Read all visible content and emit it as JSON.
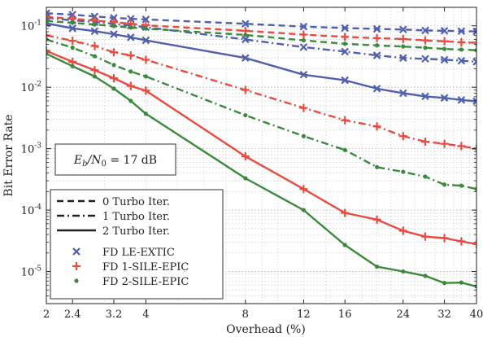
{
  "chart_data": {
    "type": "line",
    "xlabel": "Overhead (%)",
    "ylabel": "Bit Error Rate",
    "xscale": "log",
    "yscale": "log",
    "xlim": [
      2,
      40
    ],
    "ylim": [
      3e-06,
      0.2
    ],
    "xticks": [
      2,
      2.4,
      3.2,
      4,
      8,
      12,
      16,
      24,
      32,
      40
    ],
    "xtick_labels": [
      "2",
      "2.4",
      "3.2",
      "4",
      "8",
      "12",
      "16",
      "24",
      "32",
      "40"
    ],
    "yticks": [
      0.1,
      0.01,
      0.001,
      0.0001,
      1e-05
    ],
    "ytick_labels": [
      [
        "10",
        "-1"
      ],
      [
        "10",
        "-2"
      ],
      [
        "10",
        "-3"
      ],
      [
        "10",
        "-4"
      ],
      [
        "10",
        "-5"
      ]
    ],
    "grid": true,
    "annotation": {
      "text": "Eb/N0 = 17 dB",
      "lhs_main": "E",
      "lhs_sub": "b",
      "slash": "/",
      "n_main": "N",
      "n_sub": "0",
      "rhs": " = 17 dB"
    },
    "legend": {
      "placement": "bottom-left",
      "line_styles": [
        {
          "label": "0 Turbo Iter.",
          "style": "dashed"
        },
        {
          "label": "1 Turbo Iter.",
          "style": "dashdot"
        },
        {
          "label": "2 Turbo Iter.",
          "style": "solid"
        }
      ],
      "methods": [
        {
          "label": "FD LE-EXTIC",
          "color": "#5060ae",
          "marker": "x"
        },
        {
          "label": "FD 1-SILE-EPIC",
          "color": "#ea4a3f",
          "marker": "plus"
        },
        {
          "label": "FD 2-SILE-EPIC",
          "color": "#3b8a3b",
          "marker": "dot"
        }
      ]
    },
    "x": [
      2,
      2.4,
      2.8,
      3.2,
      3.6,
      4,
      8,
      12,
      16,
      20,
      24,
      28,
      32,
      36,
      40
    ],
    "series": [
      {
        "method": "FD LE-EXTIC",
        "iter": 0,
        "style": "dashed",
        "color": "#5060ae",
        "values": [
          0.16,
          0.152,
          0.142,
          0.135,
          0.13,
          0.127,
          0.108,
          0.097,
          0.092,
          0.089,
          0.087,
          0.084,
          0.083,
          0.082,
          0.081
        ]
      },
      {
        "method": "FD LE-EXTIC",
        "iter": 1,
        "style": "dashdot",
        "color": "#5060ae",
        "values": [
          0.135,
          0.123,
          0.115,
          0.108,
          0.101,
          0.095,
          0.06,
          0.045,
          0.038,
          0.033,
          0.03,
          0.029,
          0.028,
          0.027,
          0.026
        ]
      },
      {
        "method": "FD LE-EXTIC",
        "iter": 2,
        "style": "solid",
        "color": "#5060ae",
        "values": [
          0.11,
          0.091,
          0.082,
          0.073,
          0.065,
          0.058,
          0.03,
          0.016,
          0.013,
          0.0095,
          0.008,
          0.0071,
          0.0067,
          0.0062,
          0.0059
        ]
      },
      {
        "method": "FD 1-SILE-EPIC",
        "iter": 0,
        "style": "dashed",
        "color": "#ea4a3f",
        "values": [
          0.14,
          0.13,
          0.122,
          0.115,
          0.108,
          0.102,
          0.083,
          0.072,
          0.066,
          0.063,
          0.061,
          0.058,
          0.056,
          0.054,
          0.053
        ]
      },
      {
        "method": "FD 1-SILE-EPIC",
        "iter": 1,
        "style": "dashdot",
        "color": "#ea4a3f",
        "values": [
          0.07,
          0.057,
          0.047,
          0.037,
          0.033,
          0.028,
          0.009,
          0.0046,
          0.0029,
          0.0023,
          0.0016,
          0.0013,
          0.0012,
          0.0011,
          0.001
        ]
      },
      {
        "method": "FD 1-SILE-EPIC",
        "iter": 2,
        "style": "solid",
        "color": "#ea4a3f",
        "values": [
          0.039,
          0.026,
          0.019,
          0.014,
          0.0105,
          0.0088,
          0.00075,
          0.00022,
          9e-05,
          7e-05,
          4.6e-05,
          3.7e-05,
          3.5e-05,
          3.1e-05,
          2.8e-05
        ]
      },
      {
        "method": "FD 2-SILE-EPIC",
        "iter": 0,
        "style": "dashed",
        "color": "#3b8a3b",
        "values": [
          0.12,
          0.112,
          0.105,
          0.099,
          0.094,
          0.09,
          0.071,
          0.058,
          0.051,
          0.048,
          0.046,
          0.044,
          0.042,
          0.041,
          0.04
        ]
      },
      {
        "method": "FD 2-SILE-EPIC",
        "iter": 1,
        "style": "dashdot",
        "color": "#3b8a3b",
        "values": [
          0.06,
          0.044,
          0.032,
          0.023,
          0.018,
          0.015,
          0.0035,
          0.0016,
          0.00095,
          0.0005,
          0.00042,
          0.00035,
          0.00026,
          0.00025,
          0.00022
        ]
      },
      {
        "method": "FD 2-SILE-EPIC",
        "iter": 2,
        "style": "solid",
        "color": "#3b8a3b",
        "values": [
          0.035,
          0.022,
          0.015,
          0.0095,
          0.006,
          0.0037,
          0.00033,
          0.0001,
          2.7e-05,
          1.2e-05,
          1e-05,
          8.5e-06,
          6.5e-06,
          6.6e-06,
          5.7e-06
        ]
      }
    ]
  }
}
